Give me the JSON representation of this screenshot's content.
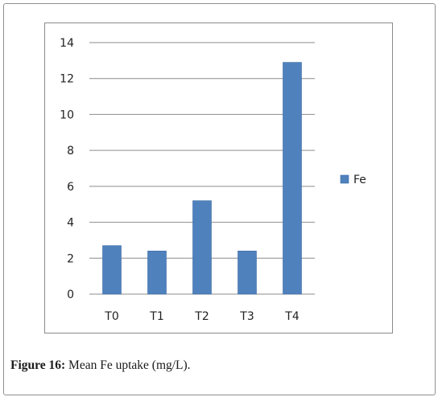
{
  "figure": {
    "caption_label": "Figure 16:",
    "caption_text": "Mean Fe uptake (mg/L)."
  },
  "colors": {
    "bar": "#4f81bd",
    "bar_edge": "#3b6aa3",
    "grid": "#8c8c8c",
    "axis_text": "#222222"
  },
  "chart_data": {
    "type": "bar",
    "title": "",
    "xlabel": "",
    "ylabel": "",
    "categories": [
      "T0",
      "T1",
      "T2",
      "T3",
      "T4"
    ],
    "series": [
      {
        "name": "Fe",
        "values": [
          2.7,
          2.4,
          5.2,
          2.4,
          12.9
        ]
      }
    ],
    "ylim": [
      0,
      14
    ],
    "yticks": [
      0,
      2,
      4,
      6,
      8,
      10,
      12,
      14
    ],
    "ytick_labels": [
      "0",
      "2",
      "4",
      "6",
      "8",
      "10",
      "12",
      "14"
    ],
    "grid": true,
    "legend": "right"
  }
}
